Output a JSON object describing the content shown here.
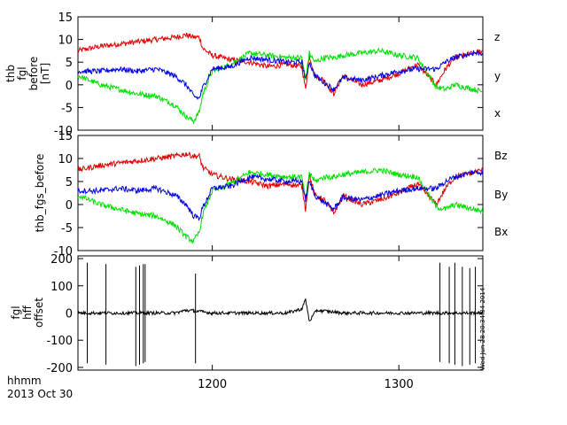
{
  "footer": {
    "xunit": "hhmm",
    "date": "2013 Oct 30"
  },
  "stamp": "Wed Jun 28 20:34:34 2014",
  "chart_data": [
    {
      "type": "line",
      "ylabel_lines": [
        "thb",
        "fgl",
        "before",
        "[nT]"
      ],
      "ylim": [
        -10,
        15
      ],
      "yticks": [
        -10,
        -5,
        0,
        5,
        10,
        15
      ],
      "xlim": [
        1128,
        1345
      ],
      "xticks": [
        1200,
        1300
      ],
      "grid": false,
      "legend": "right",
      "series": [
        {
          "name": "z",
          "color": "#e00000",
          "x": [
            1128,
            1140,
            1150,
            1160,
            1170,
            1180,
            1186,
            1190,
            1193,
            1195,
            1200,
            1210,
            1220,
            1230,
            1240,
            1248,
            1250,
            1252,
            1255,
            1260,
            1265,
            1270,
            1280,
            1290,
            1300,
            1310,
            1320,
            1325,
            1330,
            1340,
            1345
          ],
          "values": [
            7.5,
            8.5,
            9,
            9.5,
            10,
            10.5,
            11,
            10.5,
            10.5,
            8,
            6.5,
            5.5,
            5,
            4,
            4.5,
            4,
            -1,
            6.5,
            2,
            1,
            -2,
            2,
            0,
            1,
            2.5,
            4.5,
            0,
            3.5,
            6,
            7,
            7.5
          ]
        },
        {
          "name": "y",
          "color": "#00e000",
          "x": [
            1128,
            1140,
            1150,
            1160,
            1170,
            1180,
            1186,
            1190,
            1193,
            1195,
            1200,
            1210,
            1220,
            1230,
            1240,
            1248,
            1250,
            1252,
            1255,
            1260,
            1265,
            1270,
            1280,
            1290,
            1300,
            1310,
            1320,
            1325,
            1330,
            1340,
            1345
          ],
          "values": [
            2,
            0,
            -1,
            -2,
            -2.5,
            -4.5,
            -7,
            -8,
            -6,
            -2,
            3,
            4.5,
            7,
            6.5,
            6,
            6,
            1,
            7,
            5,
            6,
            6,
            6.5,
            7,
            7.5,
            6.5,
            6,
            -0.5,
            -1,
            0,
            -1,
            -1.5
          ]
        },
        {
          "name": "x",
          "color": "#0000e0",
          "x": [
            1128,
            1140,
            1150,
            1160,
            1170,
            1180,
            1186,
            1190,
            1193,
            1195,
            1200,
            1210,
            1220,
            1230,
            1240,
            1248,
            1250,
            1252,
            1255,
            1260,
            1265,
            1270,
            1280,
            1290,
            1300,
            1310,
            1320,
            1325,
            1330,
            1340,
            1345
          ],
          "values": [
            3,
            3,
            3.5,
            3,
            3.5,
            2,
            0,
            -2.5,
            -3,
            -0.5,
            3.5,
            4,
            6,
            5.5,
            5,
            5,
            1,
            5,
            2,
            0.5,
            -1,
            1.5,
            1,
            2,
            3,
            3.5,
            3.5,
            5,
            6,
            7,
            7
          ]
        }
      ]
    },
    {
      "type": "line",
      "ylabel_lines": [
        "thb_fgs_before"
      ],
      "ylim": [
        -10,
        15
      ],
      "yticks": [
        -10,
        -5,
        0,
        5,
        10,
        15
      ],
      "xlim": [
        1128,
        1345
      ],
      "xticks": [
        1200,
        1300
      ],
      "grid": false,
      "legend": "right",
      "series": [
        {
          "name": "Bz",
          "color": "#e00000",
          "x": [
            1128,
            1140,
            1150,
            1160,
            1170,
            1180,
            1186,
            1190,
            1193,
            1195,
            1200,
            1210,
            1220,
            1230,
            1240,
            1248,
            1250,
            1252,
            1255,
            1260,
            1265,
            1270,
            1280,
            1290,
            1300,
            1310,
            1320,
            1325,
            1330,
            1340,
            1345
          ],
          "values": [
            7.5,
            8.5,
            9,
            9.5,
            10,
            10.5,
            11,
            10.5,
            10.5,
            8,
            6.5,
            5.5,
            5,
            4,
            4.5,
            4,
            -1,
            6.5,
            2,
            1,
            -2,
            2,
            0,
            1,
            2.5,
            4.5,
            0,
            3.5,
            6,
            7,
            7.5
          ]
        },
        {
          "name": "By",
          "color": "#00e000",
          "x": [
            1128,
            1140,
            1150,
            1160,
            1170,
            1180,
            1186,
            1190,
            1193,
            1195,
            1200,
            1210,
            1220,
            1230,
            1240,
            1248,
            1250,
            1252,
            1255,
            1260,
            1265,
            1270,
            1280,
            1290,
            1300,
            1310,
            1320,
            1325,
            1330,
            1340,
            1345
          ],
          "values": [
            2,
            0,
            -1,
            -2,
            -2.5,
            -4.5,
            -7,
            -8,
            -6,
            -2,
            3,
            4.5,
            7,
            6.5,
            6,
            6,
            1,
            7,
            5,
            6,
            6,
            6.5,
            7,
            7.5,
            6.5,
            6,
            -0.5,
            -1,
            0,
            -1,
            -1.5
          ]
        },
        {
          "name": "Bx",
          "color": "#0000e0",
          "x": [
            1128,
            1140,
            1150,
            1160,
            1170,
            1180,
            1186,
            1190,
            1193,
            1195,
            1200,
            1210,
            1220,
            1230,
            1240,
            1248,
            1250,
            1252,
            1255,
            1260,
            1265,
            1270,
            1280,
            1290,
            1300,
            1310,
            1320,
            1325,
            1330,
            1340,
            1345
          ],
          "values": [
            3,
            3,
            3.5,
            3,
            3.5,
            2,
            0,
            -2.5,
            -3,
            -0.5,
            3.5,
            4,
            6,
            5.5,
            5,
            5,
            1,
            5,
            2,
            0.5,
            -1,
            1.5,
            1,
            2,
            3,
            3.5,
            3.5,
            5,
            6,
            7,
            7
          ]
        }
      ]
    },
    {
      "type": "line",
      "ylabel_lines": [
        "fgl",
        "hff",
        "offset"
      ],
      "ylim": [
        -210,
        210
      ],
      "yticks": [
        -200,
        -100,
        0,
        100,
        200
      ],
      "xlim": [
        1128,
        1345
      ],
      "xticks": [
        1200,
        1300
      ],
      "grid": false,
      "series": [
        {
          "color": "#000000",
          "x": [
            1128,
            1180,
            1186,
            1190,
            1200,
            1240,
            1248,
            1250,
            1252,
            1256,
            1270,
            1300,
            1345
          ],
          "values": [
            0,
            0,
            10,
            8,
            0,
            0,
            15,
            50,
            -30,
            10,
            0,
            0,
            0
          ]
        }
      ],
      "spikes": {
        "x": [
          1133,
          1143,
          1159,
          1161,
          1163,
          1164,
          1191,
          1322,
          1327,
          1330,
          1334,
          1338,
          1341
        ],
        "top": [
          185,
          180,
          170,
          175,
          180,
          180,
          145,
          185,
          170,
          185,
          170,
          165,
          170
        ],
        "bottom": [
          -185,
          -190,
          -195,
          -190,
          -185,
          -180,
          -185,
          -180,
          -185,
          -190,
          -195,
          -190,
          -185
        ]
      }
    }
  ]
}
